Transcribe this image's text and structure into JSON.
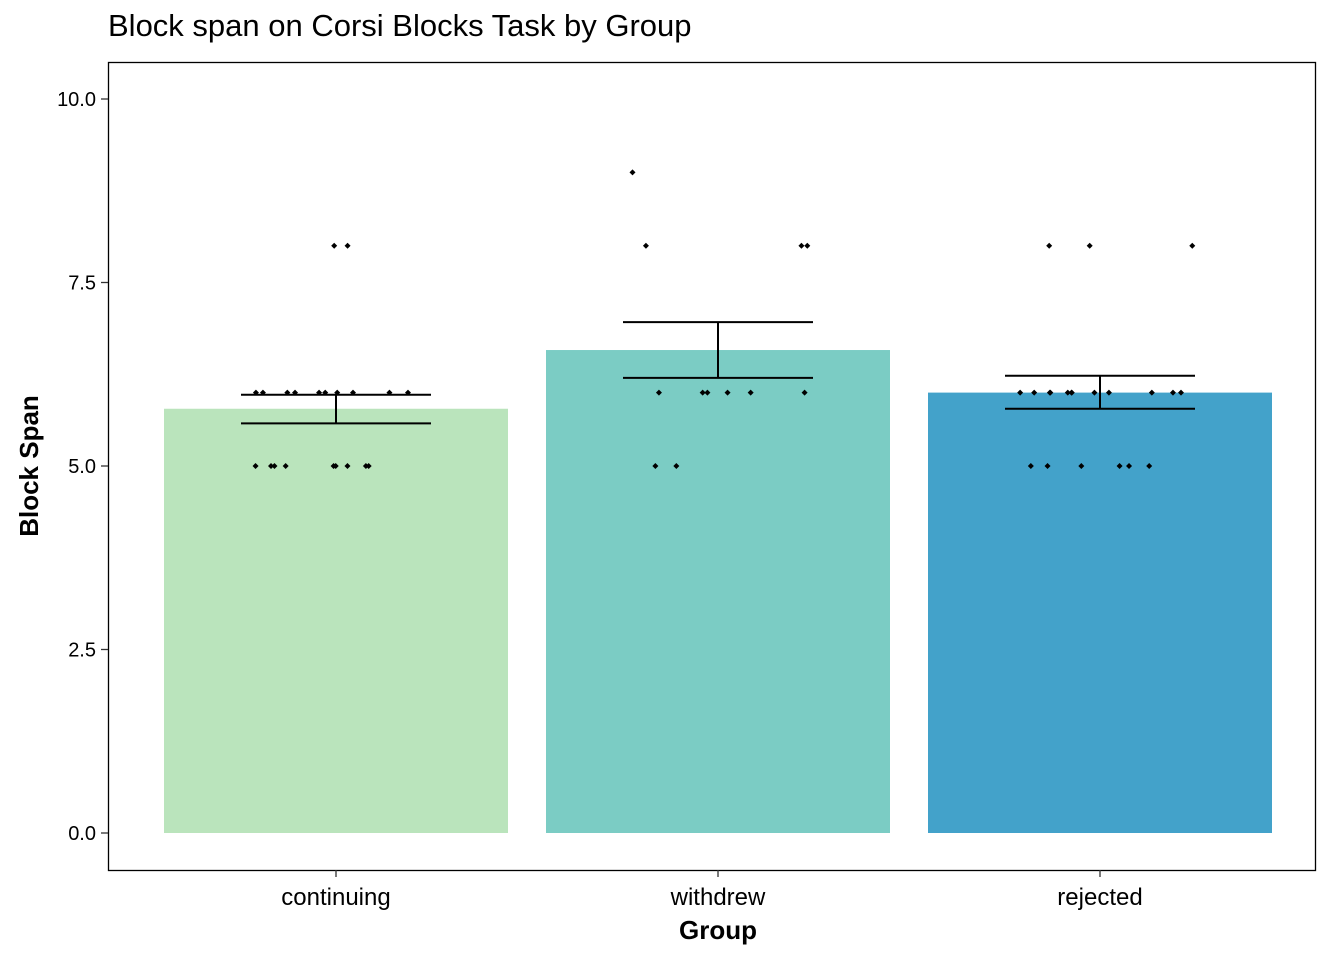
{
  "chart_data": {
    "type": "bar",
    "title": "Block span on Corsi Blocks Task by Group",
    "xlabel": "Group",
    "ylabel": "Block Span",
    "ylim": [
      0,
      10.5
    ],
    "yticks": [
      "0.0",
      "2.5",
      "5.0",
      "7.5",
      "10.0"
    ],
    "ytick_values": [
      0,
      2.5,
      5,
      7.5,
      10
    ],
    "categories": [
      "continuing",
      "withdrew",
      "rejected"
    ],
    "values": [
      5.78,
      6.58,
      6.0
    ],
    "error_bars": [
      {
        "low": 5.58,
        "high": 5.97
      },
      {
        "low": 6.2,
        "high": 6.96
      },
      {
        "low": 5.78,
        "high": 6.23
      }
    ],
    "colors": [
      "#bae4bc",
      "#7bccc4",
      "#43a2ca"
    ],
    "points": [
      {
        "group": "continuing",
        "y": [
          8,
          8,
          6,
          6,
          6,
          6,
          6,
          6,
          6,
          6,
          6,
          6,
          5,
          5,
          5,
          5,
          5,
          5,
          5,
          5,
          5
        ]
      },
      {
        "group": "withdrew",
        "y": [
          9,
          8,
          8,
          8,
          6,
          6,
          6,
          6,
          6,
          6,
          5,
          5
        ]
      },
      {
        "group": "rejected",
        "y": [
          8,
          8,
          8,
          6,
          6,
          6,
          6,
          6,
          6,
          6,
          6,
          6,
          6,
          6,
          6,
          5,
          5,
          5,
          5,
          5,
          5
        ]
      }
    ],
    "grid": false,
    "legend": "none"
  }
}
